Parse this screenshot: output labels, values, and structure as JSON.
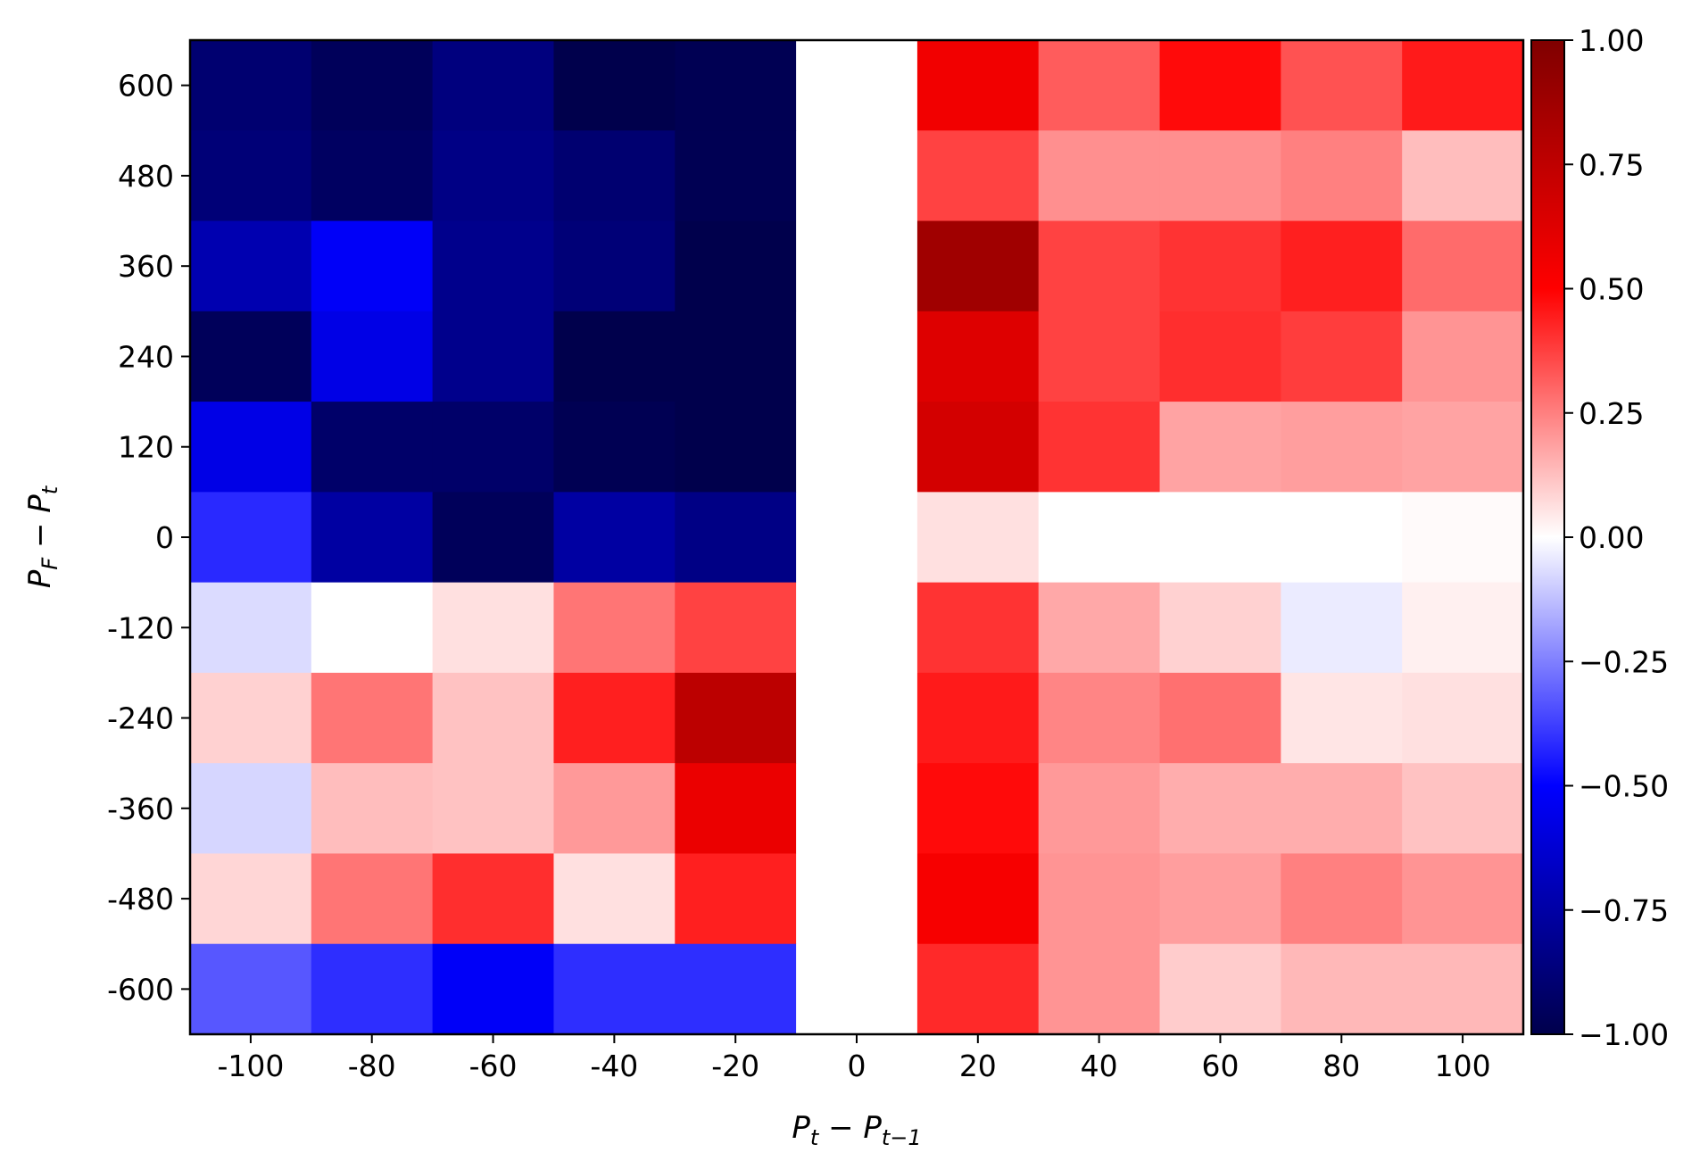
{
  "chart_data": {
    "type": "heatmap",
    "xlabel": "P_t − P_{t−1}",
    "ylabel": "P_F − P_t",
    "x_categories": [
      "-100",
      "-80",
      "-60",
      "-40",
      "-20",
      "0",
      "20",
      "40",
      "60",
      "80",
      "100"
    ],
    "y_categories": [
      "600",
      "480",
      "360",
      "240",
      "120",
      "0",
      "-120",
      "-240",
      "-360",
      "-480",
      "-600"
    ],
    "values": [
      [
        -0.9,
        -0.96,
        -0.86,
        -1.0,
        -0.98,
        0.0,
        0.55,
        0.32,
        0.48,
        0.34,
        0.45
      ],
      [
        -0.88,
        -0.94,
        -0.84,
        -0.9,
        -0.98,
        0.0,
        0.37,
        0.22,
        0.22,
        0.25,
        0.13
      ],
      [
        -0.72,
        -0.52,
        -0.82,
        -0.88,
        -1.0,
        0.0,
        0.87,
        0.37,
        0.4,
        0.44,
        0.29
      ],
      [
        -0.96,
        -0.57,
        -0.82,
        -1.0,
        -1.0,
        0.0,
        0.63,
        0.37,
        0.41,
        0.38,
        0.21
      ],
      [
        -0.57,
        -0.92,
        -0.92,
        -0.98,
        -1.0,
        0.0,
        0.67,
        0.4,
        0.18,
        0.19,
        0.18
      ],
      [
        -0.42,
        -0.76,
        -0.96,
        -0.76,
        -0.84,
        0.0,
        0.06,
        0.0,
        0.0,
        0.0,
        0.01
      ],
      [
        -0.07,
        0.0,
        0.06,
        0.27,
        0.37,
        0.0,
        0.4,
        0.17,
        0.09,
        -0.04,
        0.03
      ],
      [
        0.09,
        0.27,
        0.12,
        0.44,
        0.76,
        0.0,
        0.45,
        0.24,
        0.28,
        0.05,
        0.06
      ],
      [
        -0.08,
        0.13,
        0.12,
        0.2,
        0.58,
        0.0,
        0.48,
        0.2,
        0.16,
        0.16,
        0.12
      ],
      [
        0.08,
        0.27,
        0.41,
        0.06,
        0.44,
        0.0,
        0.53,
        0.21,
        0.19,
        0.25,
        0.21
      ],
      [
        -0.33,
        -0.41,
        -0.52,
        -0.41,
        -0.41,
        0.0,
        0.42,
        0.21,
        0.1,
        0.14,
        0.14
      ]
    ],
    "colormap": "seismic",
    "vmin": -1,
    "vmax": 1,
    "colorbar_ticks": [
      "1.00",
      "0.75",
      "0.50",
      "0.25",
      "0.00",
      "−0.25",
      "−0.50",
      "−0.75",
      "−1.00"
    ],
    "colorbar_tick_values": [
      1.0,
      0.75,
      0.5,
      0.25,
      0.0,
      -0.25,
      -0.5,
      -0.75,
      -1.0
    ],
    "grid": false,
    "legend": "colorbar-right"
  }
}
